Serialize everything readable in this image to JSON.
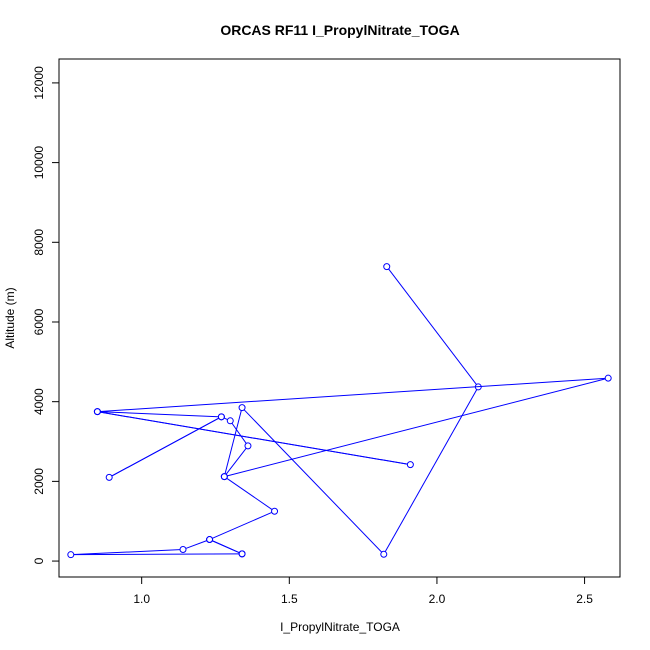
{
  "chart_data": {
    "type": "line",
    "title": "ORCAS RF11 I_PropylNitrate_TOGA",
    "xlabel": "I_PropylNitrate_TOGA",
    "ylabel": "Altitude (m)",
    "xlim": [
      0.72,
      2.62
    ],
    "ylim": [
      -400,
      12600
    ],
    "xticks": [
      1.0,
      1.5,
      2.0,
      2.5
    ],
    "xtick_labels": [
      "1.0",
      "1.5",
      "2.0",
      "2.5"
    ],
    "yticks": [
      0,
      2000,
      4000,
      6000,
      8000,
      10000,
      12000
    ],
    "ytick_labels": [
      "0",
      "2000",
      "4000",
      "6000",
      "8000",
      "10000",
      "12000"
    ],
    "grid": false,
    "series": [
      {
        "color": "#0000ff",
        "marker": "open-circle",
        "x": [
          1.34,
          1.23,
          1.14,
          0.76,
          1.34,
          1.23,
          1.45,
          1.28,
          1.36,
          1.3,
          1.27,
          0.89,
          1.27,
          0.85,
          1.91,
          0.85,
          2.58,
          1.28,
          1.34,
          1.82,
          2.14,
          1.83
        ],
        "y": [
          180,
          540,
          290,
          160,
          180,
          540,
          1250,
          2120,
          2890,
          3520,
          3620,
          2100,
          3620,
          3750,
          2420,
          3750,
          4590,
          2120,
          3850,
          170,
          4370,
          7390
        ]
      }
    ]
  }
}
